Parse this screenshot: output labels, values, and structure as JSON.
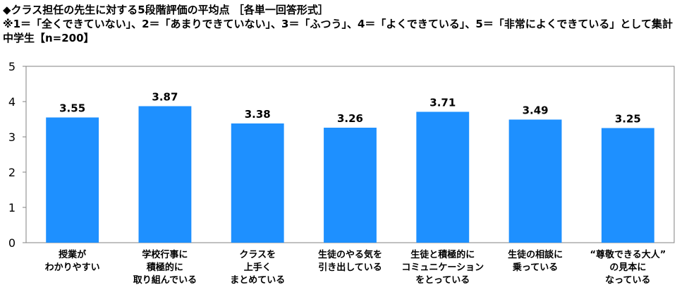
{
  "header": {
    "title": "◆クラス担任の先生に対する5段階評価の平均点 ［各単一回答形式］",
    "note": "※1＝「全くできていない」、2＝「あまりできていない」、3＝「ふつう」、4＝「よくできている」、5＝「非常によくできている」として集計",
    "sample": "中学生【n=200】"
  },
  "chart_data": {
    "type": "bar",
    "title": "",
    "xlabel": "",
    "ylabel": "",
    "ylim": [
      0,
      5
    ],
    "yticks": [
      0,
      1,
      2,
      3,
      4,
      5
    ],
    "grid": false,
    "bar_color": "#1e90ff",
    "categories": [
      "授業が\nわかりやすい",
      "学校行事に\n積極的に\n取り組んでいる",
      "クラスを\n上手く\nまとめている",
      "生徒のやる気を\n引き出している",
      "生徒と積極的に\nコミュニケーション\nをとっている",
      "生徒の相談に\n乗っている",
      "“尊敬できる大人”\nの見本に\nなっている"
    ],
    "values": [
      3.55,
      3.87,
      3.38,
      3.26,
      3.71,
      3.49,
      3.25
    ],
    "value_labels": [
      "3.55",
      "3.87",
      "3.38",
      "3.26",
      "3.71",
      "3.49",
      "3.25"
    ]
  }
}
